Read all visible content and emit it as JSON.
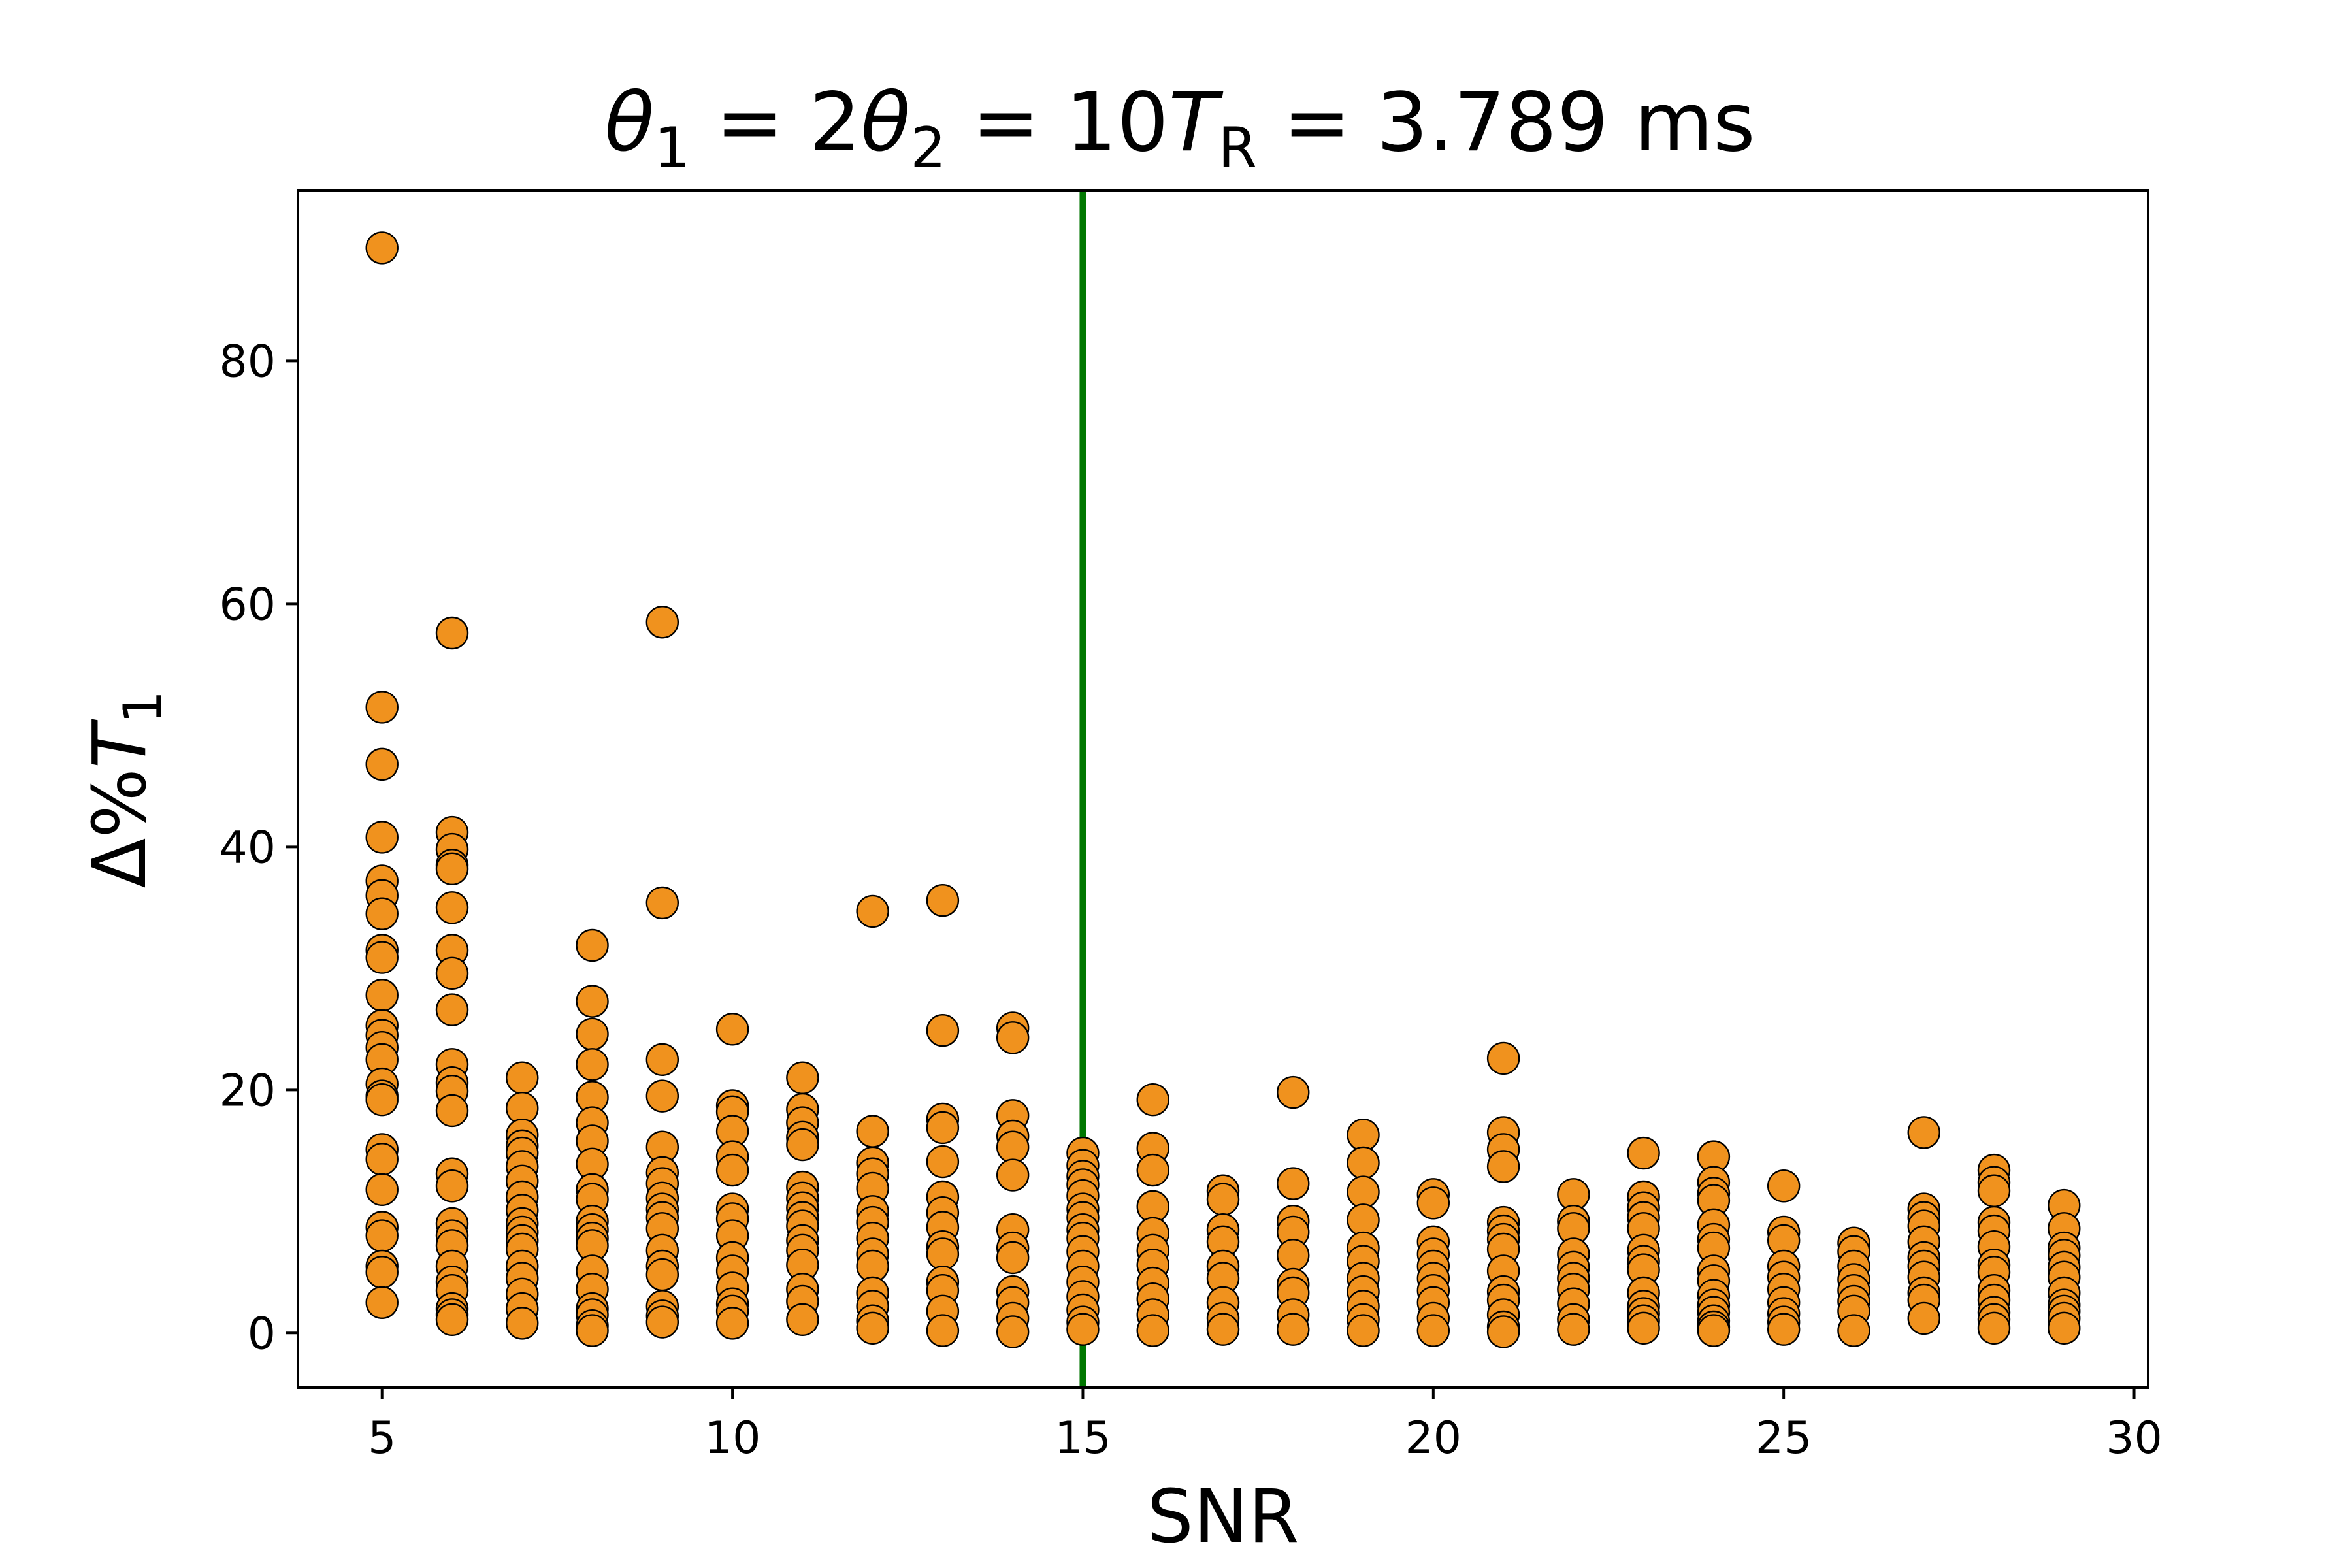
{
  "chart_data": {
    "type": "scatter",
    "title": {
      "parts": [
        {
          "sym": "θ",
          "sub": "1",
          "eq": " = 2"
        },
        {
          "sym": "θ",
          "sub": "2",
          "eq": " = 10"
        },
        {
          "sym": "T",
          "sub": "R",
          "eq": " = 3.789 ms"
        }
      ]
    },
    "xlabel": "SNR",
    "ylabel": {
      "prefix": "Δ%",
      "sym": "T",
      "sub": "1"
    },
    "xlim": [
      3.8,
      30.2
    ],
    "ylim": [
      -4.5,
      94
    ],
    "xticks": [
      5,
      10,
      15,
      20,
      25,
      30
    ],
    "yticks": [
      0,
      20,
      40,
      60,
      80
    ],
    "marker_color": "#f0921e",
    "marker_edge": "#000000",
    "vline": {
      "x": 15,
      "color": "#007700"
    },
    "points": [
      {
        "x": 5,
        "y": [
          89.3,
          51.5,
          46.8,
          40.8,
          37.2,
          36.0,
          34.5,
          31.5,
          30.9,
          27.8,
          25.3,
          24.5,
          23.5,
          22.5,
          20.5,
          19.5,
          19.2,
          15.1,
          14.3,
          11.8,
          8.7,
          8.0,
          5.5,
          5.0,
          2.5
        ]
      },
      {
        "x": 6,
        "y": [
          57.6,
          41.2,
          39.8,
          38.5,
          38.2,
          35.0,
          31.5,
          29.6,
          26.6,
          22.1,
          20.6,
          19.9,
          18.3,
          13.1,
          12.1,
          9.0,
          8.0,
          7.2,
          5.5,
          4.2,
          3.5,
          2.0,
          1.5,
          1.1
        ]
      },
      {
        "x": 7,
        "y": [
          21.0,
          18.5,
          16.3,
          15.4,
          14.8,
          13.7,
          12.5,
          11.2,
          10.1,
          9.0,
          8.3,
          7.6,
          6.9,
          5.5,
          4.5,
          3.2,
          2.0,
          0.8
        ]
      },
      {
        "x": 8,
        "y": [
          31.9,
          27.3,
          24.6,
          22.1,
          19.4,
          17.3,
          15.8,
          13.9,
          11.8,
          11.0,
          9.2,
          8.5,
          7.8,
          7.2,
          5.1,
          3.6,
          2.0,
          1.5,
          0.6,
          0.2
        ]
      },
      {
        "x": 9,
        "y": [
          58.5,
          35.4,
          22.5,
          19.5,
          15.3,
          13.2,
          12.3,
          11.1,
          10.2,
          9.5,
          8.6,
          6.8,
          5.5,
          4.8,
          2.2,
          1.4,
          0.9
        ]
      },
      {
        "x": 10,
        "y": [
          25.0,
          18.7,
          18.2,
          16.6,
          14.5,
          13.4,
          10.2,
          9.4,
          8.0,
          6.2,
          5.1,
          3.7,
          2.4,
          1.8,
          0.8
        ]
      },
      {
        "x": 11,
        "y": [
          21.0,
          18.4,
          17.3,
          16.1,
          15.5,
          12.0,
          11.1,
          10.3,
          9.5,
          8.8,
          7.6,
          6.8,
          5.6,
          3.6,
          2.6,
          1.1
        ]
      },
      {
        "x": 12,
        "y": [
          34.7,
          16.6,
          14.0,
          13.1,
          11.9,
          10.0,
          9.1,
          7.8,
          6.5,
          5.5,
          3.3,
          2.2,
          1.0,
          0.4
        ]
      },
      {
        "x": 13,
        "y": [
          35.6,
          24.9,
          17.6,
          16.9,
          14.1,
          11.2,
          9.9,
          8.7,
          7.1,
          6.5,
          4.2,
          3.5,
          1.8,
          0.2
        ]
      },
      {
        "x": 14,
        "y": [
          25.1,
          24.3,
          17.9,
          16.2,
          15.3,
          13.0,
          8.5,
          7.0,
          6.2,
          3.4,
          2.5,
          1.2,
          0.1
        ]
      },
      {
        "x": 15,
        "y": [
          14.8,
          13.8,
          12.9,
          12.2,
          11.3,
          10.2,
          9.5,
          8.5,
          7.8,
          6.7,
          5.5,
          4.2,
          3.0,
          1.9,
          0.9,
          0.3
        ]
      },
      {
        "x": 16,
        "y": [
          19.2,
          15.2,
          13.4,
          10.4,
          8.2,
          6.8,
          5.6,
          4.1,
          2.8,
          1.5,
          0.2
        ]
      },
      {
        "x": 17,
        "y": [
          11.7,
          11.0,
          8.5,
          7.5,
          5.5,
          4.5,
          2.5,
          1.2,
          0.3
        ]
      },
      {
        "x": 18,
        "y": [
          19.8,
          12.3,
          9.2,
          8.3,
          6.4,
          4.0,
          3.3,
          1.5,
          0.3
        ]
      },
      {
        "x": 19,
        "y": [
          16.3,
          14.0,
          11.6,
          9.3,
          7.0,
          5.9,
          4.5,
          3.4,
          2.2,
          1.1,
          0.2
        ]
      },
      {
        "x": 20,
        "y": [
          11.4,
          10.7,
          7.5,
          6.5,
          5.5,
          4.5,
          3.5,
          2.5,
          1.2,
          0.2
        ]
      },
      {
        "x": 21,
        "y": [
          22.6,
          16.5,
          15.1,
          13.7,
          9.1,
          8.4,
          7.7,
          6.9,
          5.1,
          3.4,
          2.7,
          1.5,
          0.5,
          0.1
        ]
      },
      {
        "x": 22,
        "y": [
          11.4,
          9.2,
          8.6,
          6.5,
          5.4,
          4.5,
          3.6,
          2.4,
          1.1,
          0.3
        ]
      },
      {
        "x": 23,
        "y": [
          14.8,
          11.2,
          10.3,
          9.5,
          8.6,
          6.8,
          5.9,
          5.2,
          3.3,
          2.2,
          1.6,
          1.0,
          0.4
        ]
      },
      {
        "x": 24,
        "y": [
          14.5,
          12.4,
          11.5,
          10.9,
          8.9,
          7.7,
          7.0,
          5.1,
          4.3,
          3.1,
          2.3,
          1.7,
          1.0,
          0.5,
          0.2
        ]
      },
      {
        "x": 25,
        "y": [
          12.1,
          8.3,
          7.6,
          5.5,
          4.6,
          3.6,
          2.5,
          1.6,
          0.9,
          0.3
        ]
      },
      {
        "x": 26,
        "y": [
          7.4,
          6.7,
          5.5,
          4.4,
          3.5,
          2.6,
          1.8,
          0.2
        ]
      },
      {
        "x": 27,
        "y": [
          16.5,
          10.2,
          9.5,
          8.8,
          7.5,
          6.2,
          5.5,
          4.6,
          3.3,
          2.7,
          1.2
        ]
      },
      {
        "x": 28,
        "y": [
          13.4,
          12.4,
          11.7,
          9.1,
          8.4,
          7.1,
          5.6,
          5.0,
          3.5,
          2.7,
          1.7,
          1.1,
          0.4
        ]
      },
      {
        "x": 29,
        "y": [
          10.5,
          8.6,
          7.0,
          6.4,
          5.4,
          4.6,
          3.3,
          2.3,
          1.8,
          1.2,
          0.4
        ]
      }
    ]
  }
}
